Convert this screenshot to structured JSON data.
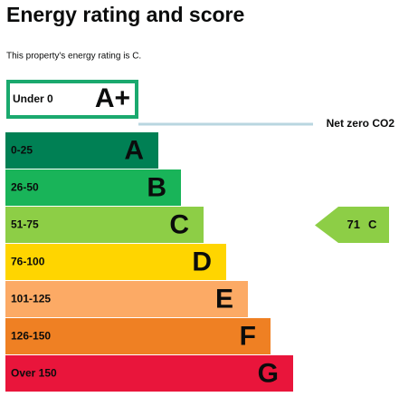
{
  "header": {
    "title": "Energy rating and score",
    "subtitle": "This property's energy rating is C."
  },
  "top_band": {
    "range": "Under 0",
    "letter": "A+",
    "color": "#1aa96e"
  },
  "net_zero_label": "Net zero CO2",
  "bands": [
    {
      "range": "0-25",
      "letter": "A",
      "color": "#008054"
    },
    {
      "range": "26-50",
      "letter": "B",
      "color": "#19b459"
    },
    {
      "range": "51-75",
      "letter": "C",
      "color": "#8dce46"
    },
    {
      "range": "76-100",
      "letter": "D",
      "color": "#ffd500"
    },
    {
      "range": "101-125",
      "letter": "E",
      "color": "#fcaa65"
    },
    {
      "range": "126-150",
      "letter": "F",
      "color": "#ef8023"
    },
    {
      "range": "Over 150",
      "letter": "G",
      "color": "#e9153b"
    }
  ],
  "current": {
    "score": 71,
    "rating": "C"
  }
}
